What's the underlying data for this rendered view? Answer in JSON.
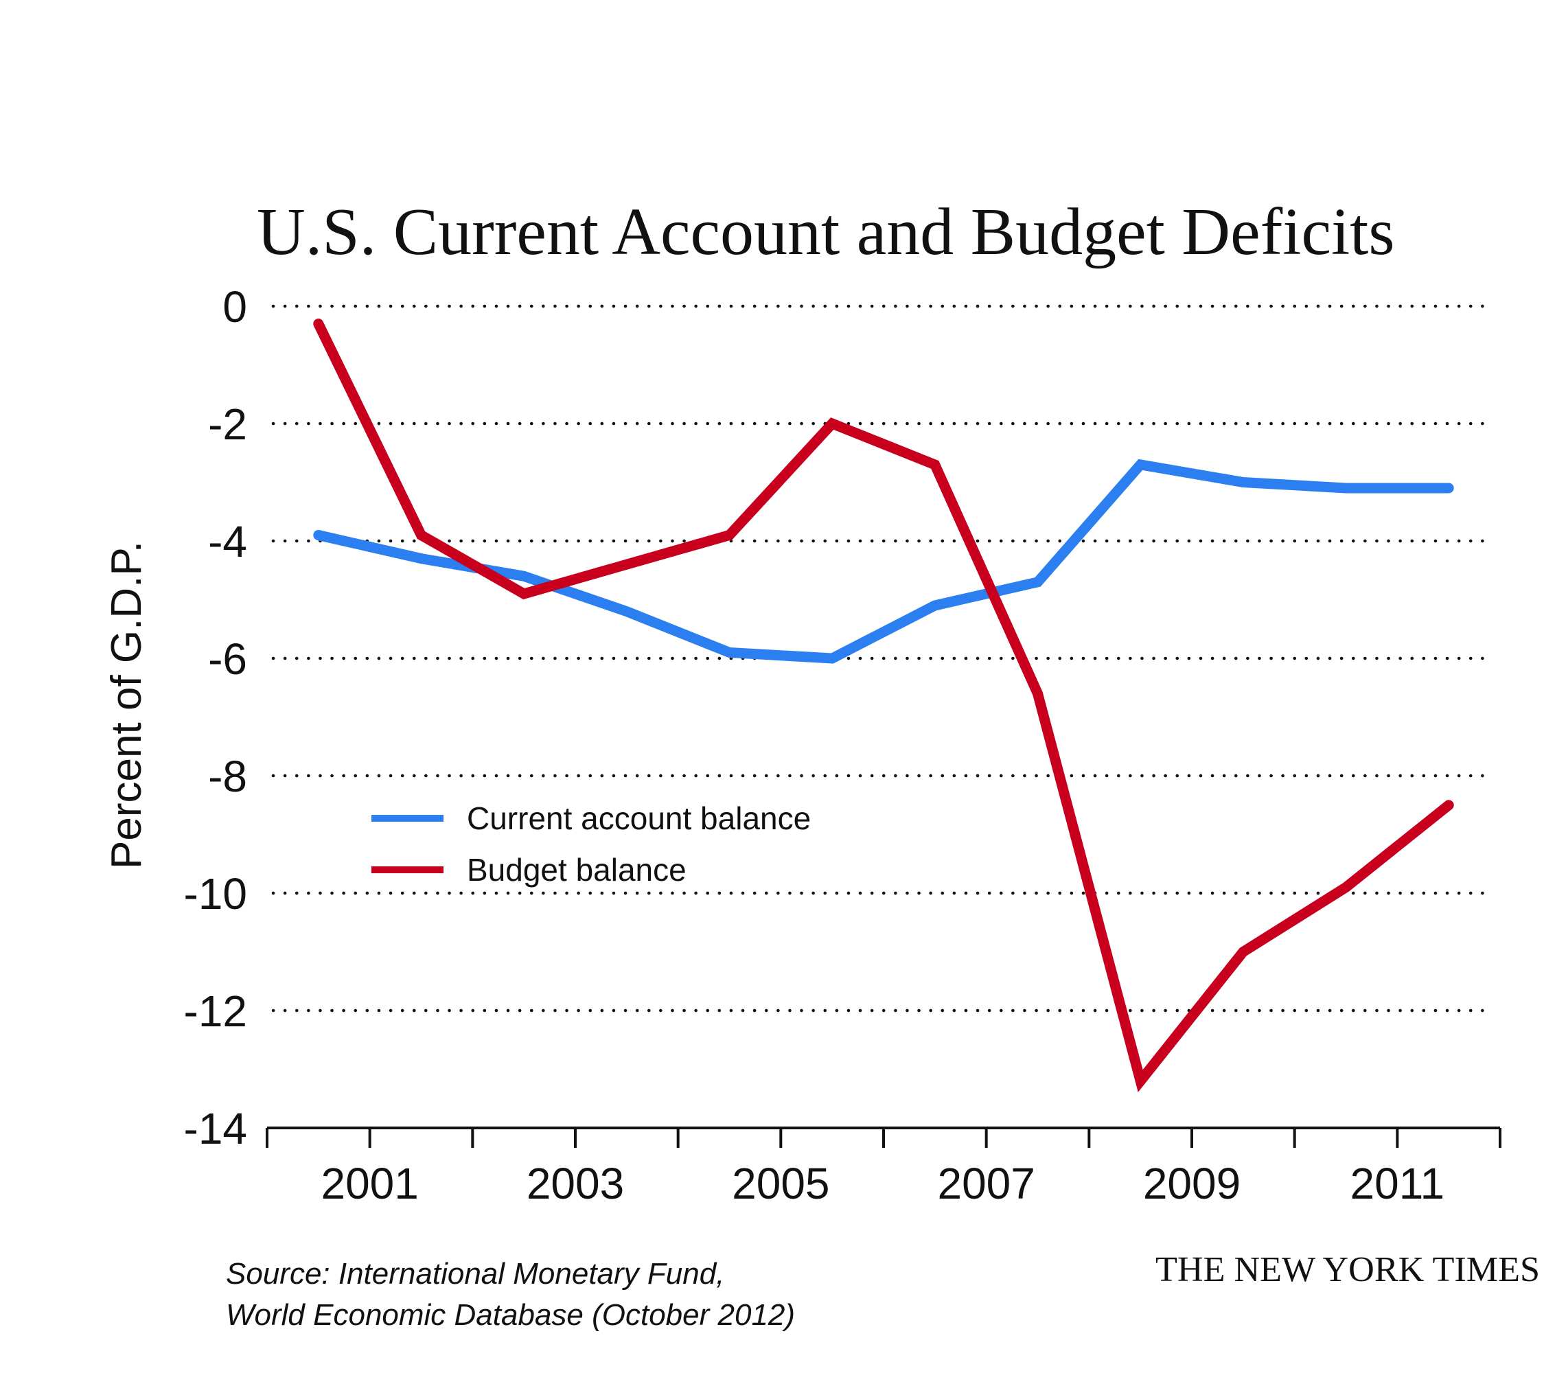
{
  "chart_data": {
    "type": "line",
    "title": "U.S. Current Account and Budget Deficits",
    "xlabel": "",
    "ylabel": "Percent of G.D.P.",
    "x": [
      2000,
      2001,
      2002,
      2003,
      2004,
      2005,
      2006,
      2007,
      2008,
      2009,
      2010,
      2011
    ],
    "series": [
      {
        "name": "Current account balance",
        "color": "#2B7FF0",
        "values": [
          -3.9,
          -4.3,
          -4.6,
          -5.2,
          -5.9,
          -6.0,
          -5.1,
          -4.7,
          -2.7,
          -3.0,
          -3.1,
          -3.1
        ]
      },
      {
        "name": "Budget balance",
        "color": "#C8001E",
        "values": [
          -0.3,
          -3.9,
          -4.9,
          -4.4,
          -3.9,
          -2.0,
          -2.7,
          -6.6,
          -13.2,
          -11.0,
          -9.9,
          -8.5
        ]
      }
    ],
    "ylim": [
      -14,
      0
    ],
    "yticks": [
      0,
      -2,
      -4,
      -6,
      -8,
      -10,
      -12,
      -14
    ],
    "ytick_labels": [
      "0",
      "-2",
      "-4",
      "-6",
      "-8",
      "-10",
      "-12",
      "-14"
    ],
    "xlim": [
      2000,
      2012
    ],
    "xticks": [
      2000,
      2001,
      2002,
      2003,
      2004,
      2005,
      2006,
      2007,
      2008,
      2009,
      2010,
      2011,
      2012
    ],
    "xtick_labels": [
      "2001",
      "2003",
      "2005",
      "2007",
      "2009",
      "2011"
    ],
    "xtick_label_years": [
      2001,
      2003,
      2005,
      2007,
      2009,
      2011
    ],
    "grid": "horizontal dotted",
    "legend": {
      "placement": "lower-left",
      "entries": [
        "Current account balance",
        "Budget balance"
      ]
    },
    "source": [
      "Source: International Monetary Fund,",
      "World Economic Database (October 2012)"
    ],
    "credit": "THE NEW YORK TIMES"
  }
}
